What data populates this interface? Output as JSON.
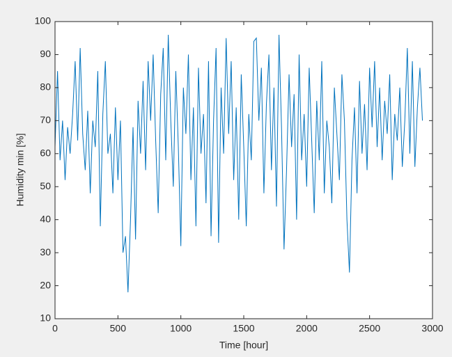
{
  "chart_data": {
    "type": "line",
    "xlabel": "Time [hour]",
    "ylabel": "Humidity min [%]",
    "x": [
      0,
      20,
      40,
      60,
      80,
      100,
      120,
      140,
      160,
      180,
      200,
      220,
      240,
      260,
      280,
      300,
      320,
      340,
      360,
      380,
      400,
      420,
      440,
      460,
      480,
      500,
      520,
      540,
      560,
      580,
      600,
      620,
      640,
      660,
      680,
      700,
      720,
      740,
      760,
      780,
      800,
      820,
      840,
      860,
      880,
      900,
      920,
      940,
      960,
      980,
      1000,
      1020,
      1040,
      1060,
      1080,
      1100,
      1120,
      1140,
      1160,
      1180,
      1200,
      1220,
      1240,
      1260,
      1280,
      1300,
      1320,
      1340,
      1360,
      1380,
      1400,
      1420,
      1440,
      1460,
      1480,
      1500,
      1520,
      1540,
      1560,
      1580,
      1600,
      1620,
      1640,
      1660,
      1680,
      1700,
      1720,
      1740,
      1760,
      1780,
      1800,
      1820,
      1840,
      1860,
      1880,
      1900,
      1920,
      1940,
      1960,
      1980,
      2000,
      2020,
      2040,
      2060,
      2080,
      2100,
      2120,
      2140,
      2160,
      2180,
      2200,
      2220,
      2240,
      2260,
      2280,
      2300,
      2320,
      2340,
      2360,
      2380,
      2400,
      2420,
      2440,
      2460,
      2480,
      2500,
      2520,
      2540,
      2560,
      2580,
      2600,
      2620,
      2640,
      2660,
      2680,
      2700,
      2720,
      2740,
      2760,
      2780,
      2800,
      2820,
      2840,
      2860,
      2880,
      2900,
      2920
    ],
    "series": [
      {
        "name": "Humidity min",
        "color": "#0072bd",
        "values": [
          62,
          85,
          58,
          70,
          52,
          68,
          60,
          72,
          88,
          64,
          92,
          66,
          55,
          73,
          48,
          70,
          62,
          85,
          38,
          72,
          88,
          60,
          66,
          48,
          74,
          52,
          70,
          30,
          35,
          18,
          40,
          68,
          34,
          76,
          60,
          82,
          55,
          88,
          70,
          90,
          64,
          42,
          78,
          92,
          58,
          96,
          70,
          50,
          85,
          62,
          32,
          80,
          66,
          90,
          52,
          74,
          38,
          86,
          60,
          72,
          45,
          88,
          35,
          70,
          92,
          33,
          80,
          60,
          95,
          66,
          88,
          52,
          74,
          40,
          84,
          62,
          38,
          72,
          58,
          94,
          95,
          70,
          86,
          48,
          75,
          90,
          55,
          80,
          44,
          96,
          68,
          31,
          55,
          84,
          62,
          78,
          40,
          90,
          58,
          72,
          50,
          86,
          64,
          42,
          76,
          58,
          88,
          48,
          70,
          62,
          45,
          80,
          66,
          52,
          84,
          70,
          40,
          24,
          58,
          74,
          48,
          82,
          60,
          75,
          55,
          86,
          68,
          88,
          62,
          80,
          58,
          76,
          66,
          84,
          52,
          72,
          64,
          80,
          56,
          70,
          92,
          60,
          88,
          56,
          74,
          86,
          70
        ]
      }
    ],
    "xlim": [
      0,
      3000
    ],
    "xticks": [
      0,
      500,
      1000,
      1500,
      2000,
      2500,
      3000
    ],
    "ylim": [
      10,
      100
    ],
    "yticks": [
      10,
      20,
      30,
      40,
      50,
      60,
      70,
      80,
      90,
      100
    ]
  }
}
